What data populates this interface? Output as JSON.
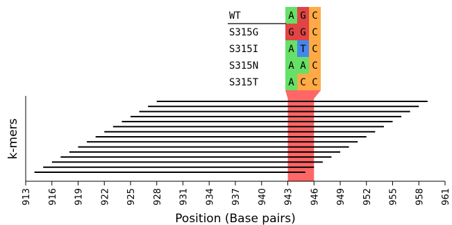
{
  "chart_data": {
    "type": "diagram",
    "xlabel": "Position (Base pairs)",
    "ylabel": "k-mers",
    "xlim": [
      913,
      961
    ],
    "xticks": [
      913,
      916,
      919,
      922,
      925,
      928,
      931,
      934,
      937,
      940,
      943,
      946,
      949,
      952,
      955,
      958,
      961
    ],
    "highlight_region": {
      "start": 943,
      "end": 946,
      "color": "#ff6666"
    },
    "kmers": [
      {
        "start": 914,
        "end": 945
      },
      {
        "start": 915,
        "end": 946
      },
      {
        "start": 916,
        "end": 947
      },
      {
        "start": 917,
        "end": 948
      },
      {
        "start": 918,
        "end": 949
      },
      {
        "start": 919,
        "end": 950
      },
      {
        "start": 920,
        "end": 951
      },
      {
        "start": 921,
        "end": 952
      },
      {
        "start": 922,
        "end": 953
      },
      {
        "start": 923,
        "end": 954
      },
      {
        "start": 924,
        "end": 955
      },
      {
        "start": 925,
        "end": 956
      },
      {
        "start": 926,
        "end": 957
      },
      {
        "start": 927,
        "end": 958
      },
      {
        "start": 928,
        "end": 959
      }
    ],
    "alignment": [
      {
        "name": "WT",
        "bases": [
          "A",
          "G",
          "C"
        ]
      },
      {
        "name": "S315G",
        "bases": [
          "G",
          "G",
          "C"
        ]
      },
      {
        "name": "S315I",
        "bases": [
          "A",
          "T",
          "C"
        ]
      },
      {
        "name": "S315N",
        "bases": [
          "A",
          "A",
          "C"
        ]
      },
      {
        "name": "S315T",
        "bases": [
          "A",
          "C",
          "C"
        ]
      }
    ],
    "base_colors": {
      "A": "#66e066",
      "G": "#e04444",
      "T": "#4488ee",
      "C": "#ffaa44"
    }
  }
}
